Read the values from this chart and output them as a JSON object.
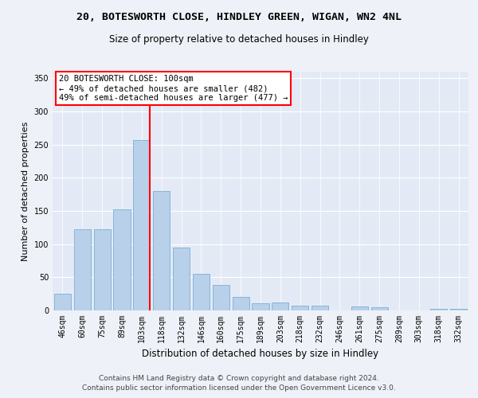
{
  "title1": "20, BOTESWORTH CLOSE, HINDLEY GREEN, WIGAN, WN2 4NL",
  "title2": "Size of property relative to detached houses in Hindley",
  "xlabel": "Distribution of detached houses by size in Hindley",
  "ylabel": "Number of detached properties",
  "categories": [
    "46sqm",
    "60sqm",
    "75sqm",
    "89sqm",
    "103sqm",
    "118sqm",
    "132sqm",
    "146sqm",
    "160sqm",
    "175sqm",
    "189sqm",
    "203sqm",
    "218sqm",
    "232sqm",
    "246sqm",
    "261sqm",
    "275sqm",
    "289sqm",
    "303sqm",
    "318sqm",
    "332sqm"
  ],
  "values": [
    25,
    122,
    122,
    153,
    257,
    180,
    95,
    55,
    38,
    20,
    11,
    12,
    7,
    7,
    0,
    6,
    5,
    0,
    0,
    2,
    2
  ],
  "bar_color": "#b8d0ea",
  "bar_edge_color": "#7aafd4",
  "red_line_index": 4,
  "ylim": [
    0,
    360
  ],
  "yticks": [
    0,
    50,
    100,
    150,
    200,
    250,
    300,
    350
  ],
  "annotation_text": "20 BOTESWORTH CLOSE: 100sqm\n← 49% of detached houses are smaller (482)\n49% of semi-detached houses are larger (477) →",
  "footer1": "Contains HM Land Registry data © Crown copyright and database right 2024.",
  "footer2": "Contains public sector information licensed under the Open Government Licence v3.0.",
  "bg_color": "#eef2f8",
  "plot_bg_color": "#e4eaf5",
  "title1_fontsize": 9.5,
  "title2_fontsize": 8.5,
  "xlabel_fontsize": 8.5,
  "ylabel_fontsize": 8,
  "tick_fontsize": 7,
  "annotation_fontsize": 7.5,
  "footer_fontsize": 6.5
}
